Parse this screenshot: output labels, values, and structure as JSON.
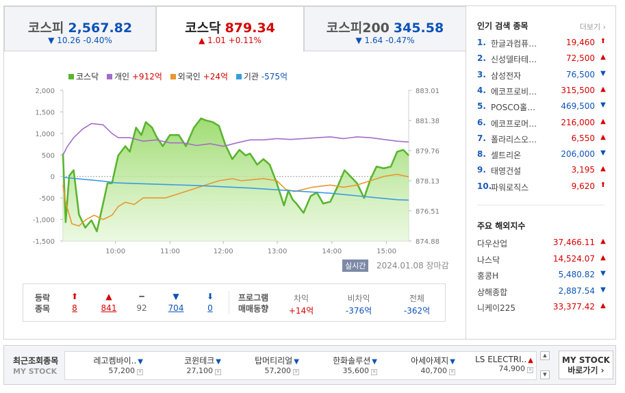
{
  "tabs": [
    {
      "name": "코스피",
      "value": "2,567.82",
      "change": "▼ 10.26 -0.40%",
      "dir": "down"
    },
    {
      "name": "코스닥",
      "value": "879.34",
      "change": "▲ 1.01 +0.11%",
      "dir": "up"
    },
    {
      "name": "코스피200",
      "value": "345.58",
      "change": "▼ 1.64 -0.47%",
      "dir": "down"
    }
  ],
  "legend": [
    {
      "label": "코스닥",
      "value": "",
      "color": "#5ab52f",
      "dir": ""
    },
    {
      "label": "개인",
      "value": "+912억",
      "color": "#a46cc8",
      "dir": "up"
    },
    {
      "label": "외국인",
      "value": "+24억",
      "color": "#e8962e",
      "dir": "up"
    },
    {
      "label": "기관",
      "value": "-575억",
      "color": "#3a9be0",
      "dir": "down"
    }
  ],
  "chart_data": {
    "type": "line",
    "x_ticks": [
      "10:00",
      "11:00",
      "12:00",
      "13:00",
      "14:00",
      "15:00"
    ],
    "y_left_ticks": [
      "2,000",
      "1,500",
      "1,000",
      "500",
      "0",
      "-500",
      "-1,000",
      "-1,500"
    ],
    "y_right_ticks": [
      "883.01",
      "881.38",
      "879.76",
      "878.13",
      "876.51",
      "874.88"
    ],
    "y_left_range": [
      -1500,
      2000
    ],
    "y_right_range": [
      874.88,
      883.01
    ],
    "x_range_min": [
      0,
      388
    ],
    "series": [
      {
        "name": "코스닥",
        "axis": "right",
        "color": "#5ab52f",
        "fill": true,
        "x": [
          0,
          3,
          7,
          12,
          18,
          25,
          32,
          38,
          45,
          50,
          55,
          62,
          70,
          75,
          82,
          88,
          93,
          100,
          105,
          112,
          120,
          130,
          138,
          147,
          155,
          160,
          168,
          175,
          182,
          190,
          198,
          205,
          210,
          218,
          225,
          232,
          240,
          248,
          253,
          258,
          262,
          270,
          278,
          285,
          292,
          300,
          308,
          316,
          322,
          330,
          338,
          345,
          352,
          360,
          368,
          375,
          382,
          388
        ],
        "y": [
          879.6,
          875.9,
          878.4,
          878.7,
          876.3,
          875.6,
          876.0,
          875.4,
          876.9,
          878.0,
          878.0,
          879.5,
          880.0,
          879.7,
          881.0,
          880.6,
          881.3,
          881.0,
          880.5,
          880.0,
          880.6,
          880.6,
          880.0,
          881.0,
          881.5,
          881.4,
          881.3,
          881.1,
          880.1,
          879.3,
          879.8,
          879.5,
          879.6,
          879.0,
          879.3,
          879.0,
          878.0,
          876.8,
          877.6,
          877.1,
          876.9,
          876.4,
          877.3,
          877.5,
          876.9,
          877.0,
          877.8,
          878.7,
          878.4,
          878.0,
          877.2,
          878.2,
          878.9,
          878.8,
          878.9,
          879.7,
          879.8,
          879.5
        ]
      },
      {
        "name": "개인",
        "axis": "left",
        "color": "#a46cc8",
        "x": [
          0,
          5,
          12,
          22,
          32,
          45,
          55,
          62,
          75,
          90,
          105,
          120,
          135,
          150,
          165,
          180,
          195,
          210,
          225,
          240,
          255,
          270,
          285,
          300,
          315,
          330,
          345,
          360,
          375,
          388
        ],
        "y": [
          500,
          700,
          900,
          1100,
          1230,
          1200,
          1000,
          900,
          900,
          820,
          850,
          780,
          780,
          720,
          760,
          700,
          780,
          850,
          850,
          880,
          860,
          880,
          900,
          920,
          880,
          920,
          900,
          860,
          820,
          800
        ]
      },
      {
        "name": "외국인",
        "axis": "left",
        "color": "#e8962e",
        "x": [
          0,
          3,
          10,
          18,
          26,
          35,
          45,
          55,
          62,
          70,
          80,
          90,
          100,
          115,
          130,
          145,
          160,
          175,
          190,
          200,
          210,
          225,
          240,
          250,
          260,
          280,
          300,
          315,
          330,
          345,
          360,
          375,
          388
        ],
        "y": [
          -200,
          -600,
          -1100,
          -1150,
          -1000,
          -900,
          -1000,
          -900,
          -700,
          -600,
          -650,
          -500,
          -500,
          -500,
          -400,
          -300,
          -200,
          -100,
          -50,
          -100,
          -80,
          -50,
          -100,
          -300,
          -350,
          -250,
          -200,
          -250,
          -200,
          -100,
          0,
          50,
          -10
        ]
      },
      {
        "name": "기관",
        "axis": "left",
        "color": "#3a9be0",
        "x": [
          0,
          15,
          30,
          45,
          60,
          90,
          120,
          150,
          180,
          210,
          240,
          270,
          300,
          330,
          360,
          375,
          388
        ],
        "y": [
          -20,
          -50,
          -80,
          -110,
          -150,
          -170,
          -190,
          -210,
          -240,
          -270,
          -310,
          -350,
          -390,
          -450,
          -510,
          -540,
          -550
        ]
      }
    ]
  },
  "chart_meta": {
    "realtime_label": "실시간",
    "date_label": "2024.01.08 장마감"
  },
  "breadth": {
    "label_top": "등락",
    "label_bottom": "종목",
    "items": [
      {
        "arrow": "⬆",
        "count": "8",
        "dir": "up",
        "name": "upper-limit"
      },
      {
        "arrow": "▲",
        "count": "841",
        "dir": "up",
        "name": "advancing"
      },
      {
        "arrow": "━",
        "count": "92",
        "dir": "flat",
        "name": "unchanged"
      },
      {
        "arrow": "▼",
        "count": "704",
        "dir": "down",
        "name": "declining"
      },
      {
        "arrow": "⬇",
        "count": "0",
        "dir": "down",
        "name": "lower-limit"
      }
    ],
    "program_label_top": "프로그램",
    "program_label_bottom": "매매동향",
    "program": [
      {
        "header": "차익",
        "value": "+14억",
        "dir": "up"
      },
      {
        "header": "비차익",
        "value": "-376억",
        "dir": "down"
      },
      {
        "header": "전체",
        "value": "-362억",
        "dir": "down"
      }
    ]
  },
  "popular": {
    "title": "인기 검색 종목",
    "more": "더보기",
    "items": [
      {
        "rank": "1.",
        "name": "한글과컴퓨…",
        "price": "19,460",
        "arrow": "⬆",
        "dir": "up"
      },
      {
        "rank": "2.",
        "name": "신성델타테…",
        "price": "72,500",
        "arrow": "▲",
        "dir": "up"
      },
      {
        "rank": "3.",
        "name": "삼성전자",
        "price": "76,500",
        "arrow": "▼",
        "dir": "down"
      },
      {
        "rank": "4.",
        "name": "에코프로비…",
        "price": "315,500",
        "arrow": "▲",
        "dir": "up"
      },
      {
        "rank": "5.",
        "name": "POSCO홀…",
        "price": "469,500",
        "arrow": "▼",
        "dir": "down"
      },
      {
        "rank": "6.",
        "name": "에코프로머…",
        "price": "216,000",
        "arrow": "▲",
        "dir": "up"
      },
      {
        "rank": "7.",
        "name": "폴라리스오…",
        "price": "6,550",
        "arrow": "▲",
        "dir": "up"
      },
      {
        "rank": "8.",
        "name": "셀트리온",
        "price": "206,000",
        "arrow": "▼",
        "dir": "down"
      },
      {
        "rank": "9.",
        "name": "태영건설",
        "price": "3,195",
        "arrow": "▲",
        "dir": "up"
      },
      {
        "rank": "10.",
        "name": "파워로직스",
        "price": "9,620",
        "arrow": "⬆",
        "dir": "up"
      }
    ]
  },
  "foreign": {
    "title": "주요 해외지수",
    "items": [
      {
        "name": "다우산업",
        "value": "37,466.11",
        "arrow": "▲",
        "dir": "up"
      },
      {
        "name": "나스닥",
        "value": "14,524.07",
        "arrow": "▲",
        "dir": "up"
      },
      {
        "name": "홍콩H",
        "value": "5,480.82",
        "arrow": "▼",
        "dir": "down"
      },
      {
        "name": "상해종합",
        "value": "2,887.54",
        "arrow": "▼",
        "dir": "down"
      },
      {
        "name": "니케이225",
        "value": "33,377.42",
        "arrow": "▲",
        "dir": "up"
      }
    ]
  },
  "recent": {
    "title": "최근조회종목",
    "subtitle": "MY STOCK",
    "items": [
      {
        "name": "레고켐바이..",
        "price": "57,200",
        "arrow": "▼",
        "dir": "down"
      },
      {
        "name": "코윈테크",
        "price": "27,100",
        "arrow": "▼",
        "dir": "down"
      },
      {
        "name": "탑머티리얼",
        "price": "57,200",
        "arrow": "▼",
        "dir": "down"
      },
      {
        "name": "한화솔루션",
        "price": "35,600",
        "arrow": "▼",
        "dir": "down"
      },
      {
        "name": "아세아제지",
        "price": "40,700",
        "arrow": "▼",
        "dir": "down"
      },
      {
        "name": "LS ELECTRI..",
        "price": "74,900",
        "arrow": "▲",
        "dir": "up"
      }
    ],
    "button_line1": "MY STOCK",
    "button_line2": "바로가기 ›"
  }
}
